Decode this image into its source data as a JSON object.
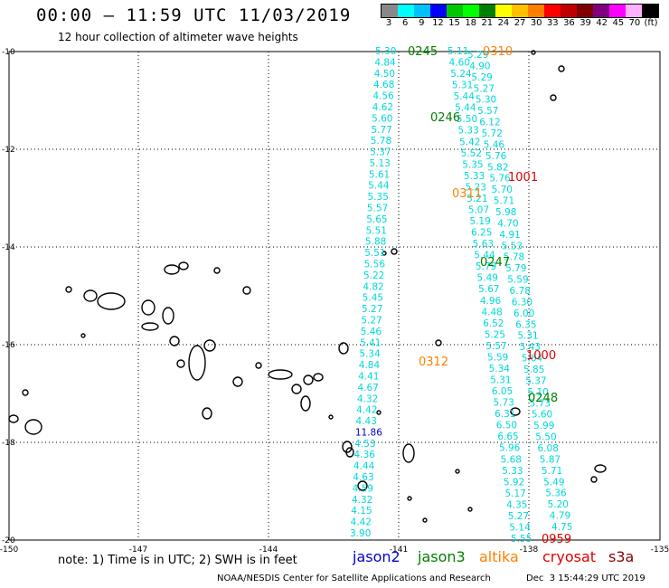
{
  "header": {
    "title": "00:00 — 11:59 UTC 11/03/2019",
    "subtitle": "12 hour collection of altimeter wave heights"
  },
  "color_scale": {
    "labels": [
      "3",
      "6",
      "9",
      "12",
      "15",
      "18",
      "21",
      "24",
      "27",
      "30",
      "33",
      "36",
      "39",
      "42",
      "45",
      "70",
      "(ft)"
    ],
    "colors": [
      "#888888",
      "#00ffff",
      "#00c0ff",
      "#0000ff",
      "#00c800",
      "#00ff00",
      "#008000",
      "#ffff00",
      "#ffc000",
      "#ff8000",
      "#ff0000",
      "#c00000",
      "#800000",
      "#800080",
      "#ff00ff",
      "#ffb0ff",
      "#000000"
    ]
  },
  "axes": {
    "lat_labels": [
      "-10",
      "-12",
      "-14",
      "-16",
      "-18",
      "-20"
    ],
    "lon_labels": [
      "-150",
      "-147",
      "-144",
      "-141",
      "-138",
      "-135"
    ]
  },
  "passes": [
    {
      "text": "0245",
      "color": "#008000"
    },
    {
      "text": "0310",
      "color": "#ff8000"
    },
    {
      "text": "0246",
      "color": "#008000"
    },
    {
      "text": "1001",
      "color": "#e00000"
    },
    {
      "text": "0311",
      "color": "#ff8000"
    },
    {
      "text": "0247",
      "color": "#008000"
    },
    {
      "text": "1000",
      "color": "#e00000"
    },
    {
      "text": "0312",
      "color": "#ff8000"
    },
    {
      "text": "0248",
      "color": "#008000"
    },
    {
      "text": "0959",
      "color": "#e00000"
    }
  ],
  "track_a_values": [
    "5.30",
    "4.84",
    "4.50",
    "4.68",
    "4.56",
    "4.62",
    "5.60",
    "5.77",
    "5.78",
    "5.37",
    "5.13",
    "5.61",
    "5.44",
    "5.35",
    "5.57",
    "5.65",
    "5.51",
    "5.88",
    "5.51",
    "5.56",
    "5.22",
    "4.82",
    "5.45",
    "5.27",
    "5.27",
    "5.46",
    "5.41",
    "5.34",
    "4.84",
    "4.41",
    "4.67",
    "4.32",
    "4.42",
    "4.43",
    "11.86",
    "4.53",
    "4.36",
    "4.44",
    "4.63",
    "4.59",
    "4.32",
    "4.15",
    "4.42",
    "3.90"
  ],
  "track_b_values": [
    "5.11",
    "4.60",
    "5.24",
    "5.31",
    "5.44",
    "5.44",
    "5.50",
    "5.33",
    "5.42",
    "5.52",
    "5.35",
    "5.33",
    "5.23",
    "5.21",
    "5.07",
    "5.19",
    "6.25",
    "5.63",
    "5.44",
    "5.79",
    "5.49",
    "5.67",
    "4.96",
    "4.48",
    "6.52",
    "5.25",
    "5.57",
    "5.59",
    "5.34",
    "5.31",
    "6.05",
    "5.73",
    "6.31",
    "6.50",
    "6.65",
    "5.96",
    "5.68",
    "5.33",
    "5.92",
    "5.17",
    "4.35",
    "5.27",
    "5.14",
    "5.55"
  ],
  "track_c_values": [
    "5.29",
    "4.90",
    "5.29",
    "5.27",
    "5.30",
    "5.57",
    "6.12",
    "5.72",
    "5.46",
    "5.76",
    "5.82",
    "5.76",
    "5.70",
    "5.71",
    "5.98",
    "4.70",
    "4.91",
    "5.53",
    "5.78",
    "5.79",
    "5.59",
    "6.78",
    "6.30",
    "6.00",
    "6.35",
    "5.31",
    "5.43",
    "5.64",
    "5.85",
    "5.37",
    "5.10",
    "5.73",
    "5.60",
    "5.99",
    "5.50",
    "6.08",
    "5.87",
    "5.71",
    "5.49",
    "5.36",
    "5.20",
    "4.79",
    "4.75"
  ],
  "map_colors": {
    "values": "#00d8d8",
    "outlier": "#0000cc"
  },
  "footer": {
    "note": "note: 1) Time is in UTC; 2) SWH is in feet",
    "legend": [
      {
        "name": "jason2",
        "color": "#0000cc"
      },
      {
        "name": "jason3",
        "color": "#008000"
      },
      {
        "name": "altika",
        "color": "#ff8000"
      },
      {
        "name": "cryosat",
        "color": "#e00000"
      },
      {
        "name": "s3a",
        "color": "#880000"
      }
    ],
    "credit": "NOAA/NESDIS Center for Satellite Applications and Research",
    "timestamp": "Dec  3 15:44:29 UTC 2019"
  }
}
